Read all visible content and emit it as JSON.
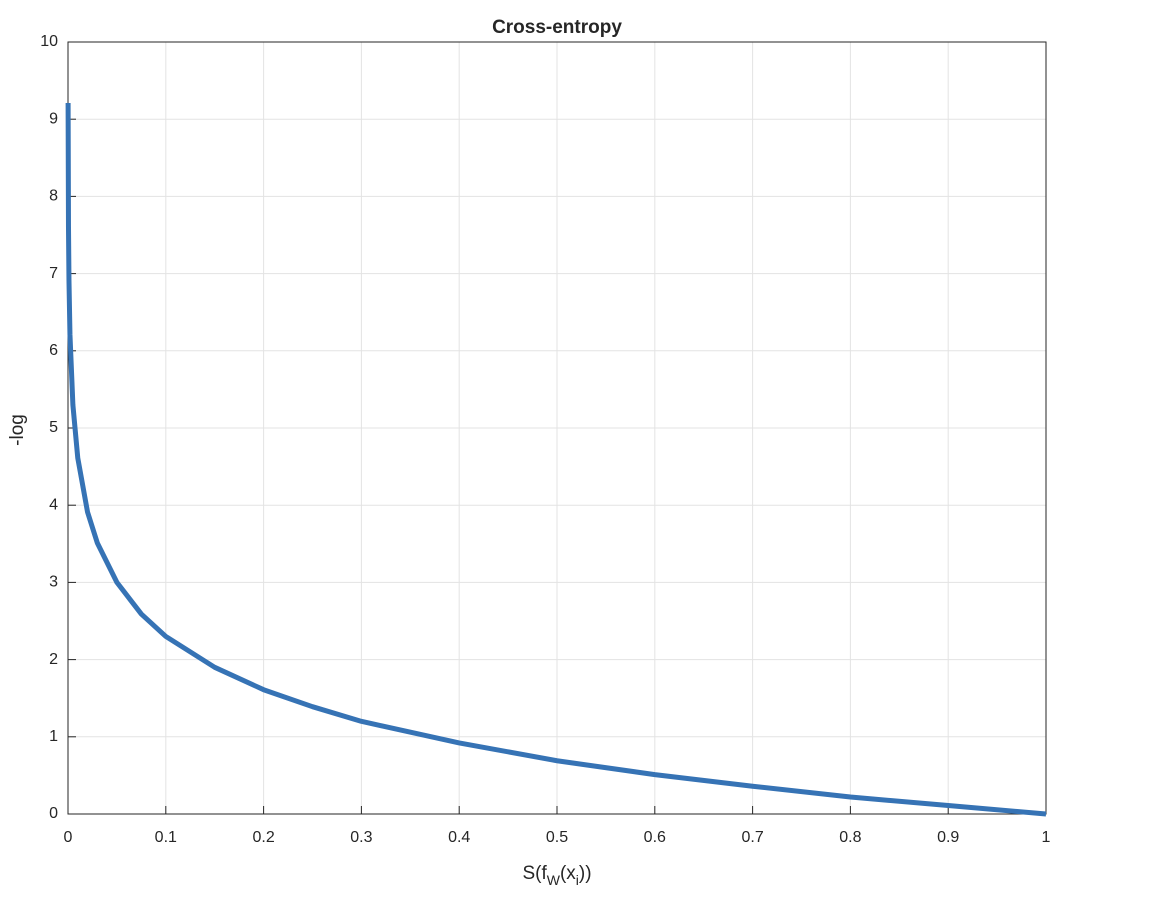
{
  "chart_data": {
    "type": "line",
    "title": "Cross-entropy",
    "xlabel": [
      "S(f",
      "W",
      "(x",
      "i",
      "))"
    ],
    "ylabel": "-log",
    "x": [
      0.0001,
      0.0005,
      0.001,
      0.002,
      0.005,
      0.01,
      0.02,
      0.03,
      0.05,
      0.075,
      0.1,
      0.15,
      0.2,
      0.25,
      0.3,
      0.4,
      0.5,
      0.6,
      0.7,
      0.8,
      0.9,
      1
    ],
    "series": [
      {
        "color": "#3673b5",
        "values": [
          9.21,
          7.6,
          6.91,
          6.21,
          5.3,
          4.61,
          3.91,
          3.51,
          3.0,
          2.59,
          2.3,
          1.9,
          1.61,
          1.39,
          1.2,
          0.92,
          0.69,
          0.51,
          0.36,
          0.22,
          0.11,
          0
        ]
      }
    ],
    "xlim": [
      0,
      1
    ],
    "ylim": [
      0,
      10
    ],
    "xticks": [
      0,
      0.1,
      0.2,
      0.3,
      0.4,
      0.5,
      0.6,
      0.7,
      0.8,
      0.9,
      1
    ],
    "yticks": [
      0,
      1,
      2,
      3,
      4,
      5,
      6,
      7,
      8,
      9,
      10
    ],
    "grid": true
  }
}
